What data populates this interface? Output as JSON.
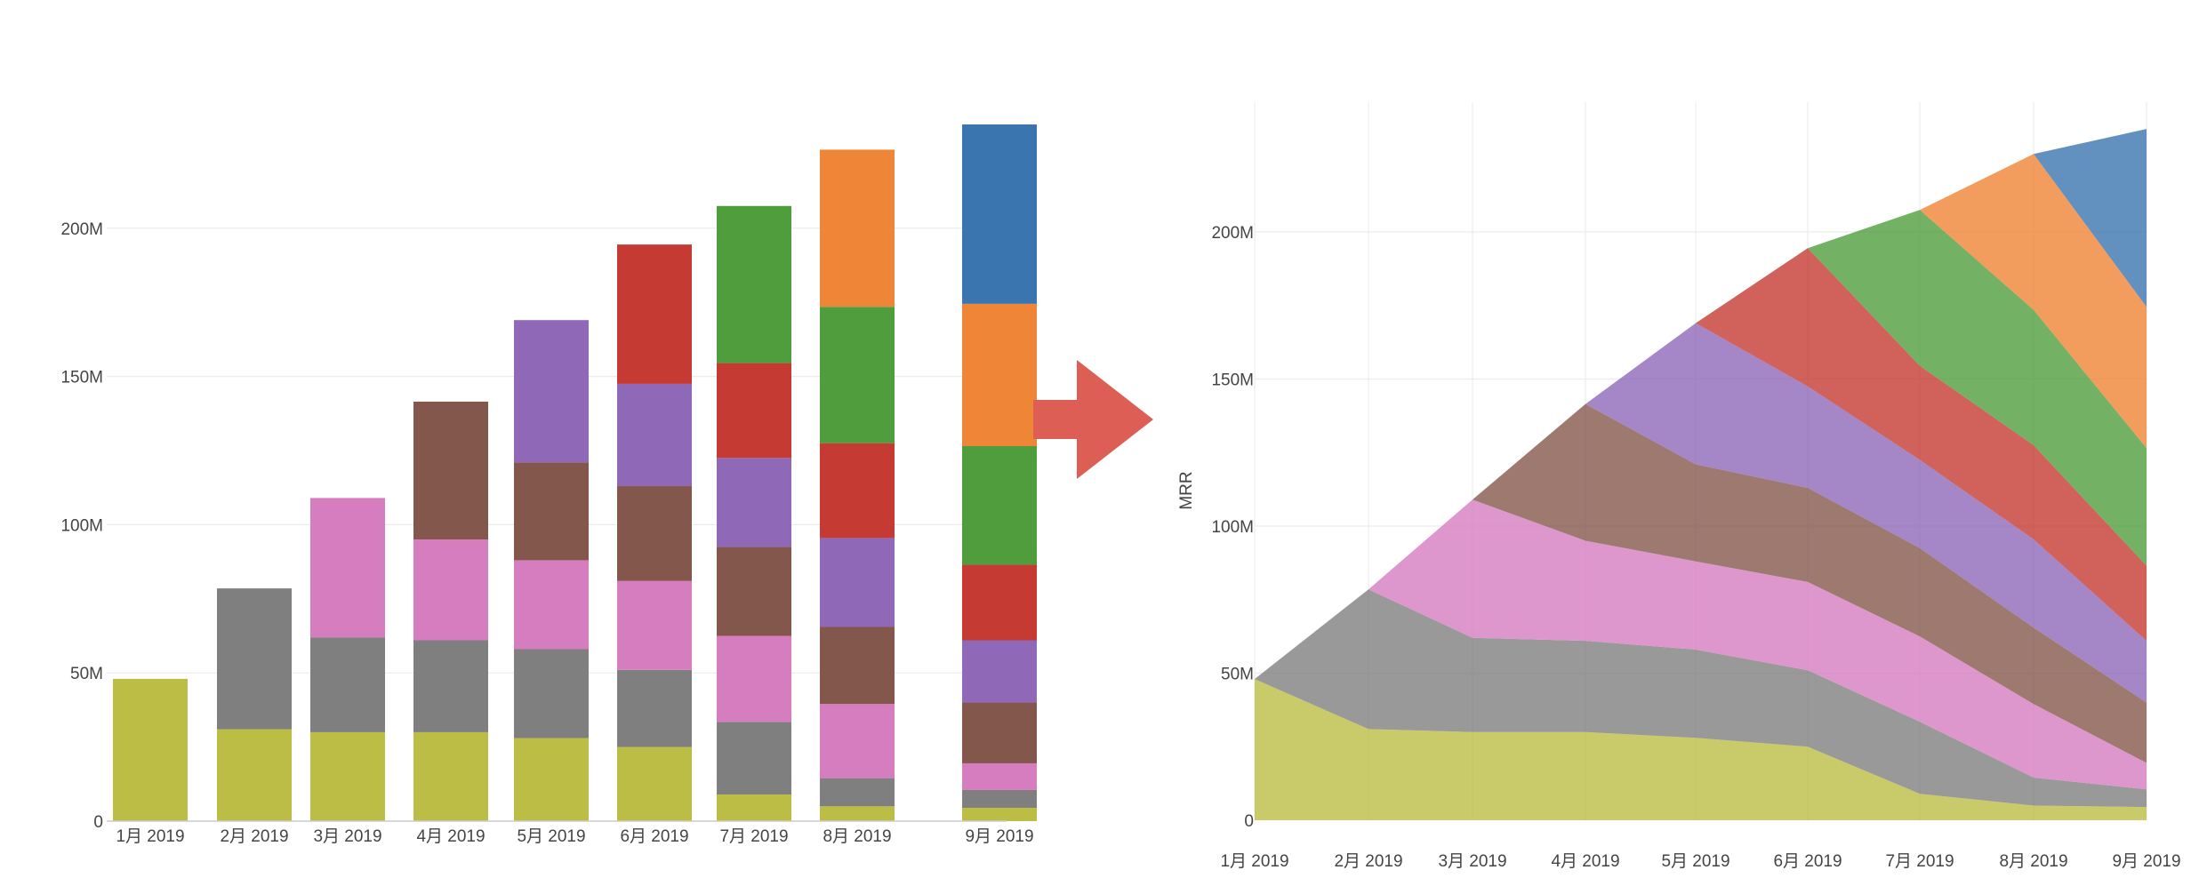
{
  "palette": {
    "c1": "#bcbd45",
    "c2": "#7f7f7f",
    "c3": "#d67dc0",
    "c4": "#84574c",
    "c5": "#8f68b8",
    "c6": "#c53a32",
    "c7": "#509d3d",
    "c8": "#ef8536",
    "c9": "#3b75af",
    "arrow": "#dc5e55",
    "grid": "#ececec",
    "axis": "#cccccc"
  },
  "transition_icon": "right-arrow-icon",
  "chart_data": [
    {
      "type": "bar",
      "stacked": true,
      "categories": [
        "1月 2019",
        "2月 2019",
        "3月 2019",
        "4月 2019",
        "5月 2019",
        "6月 2019",
        "7月 2019",
        "8月 2019",
        "9月 2019"
      ],
      "y_ticks": [
        "0",
        "50M",
        "100M",
        "150M",
        "200M"
      ],
      "y_tick_values": [
        0,
        50,
        100,
        150,
        200
      ],
      "ylim": [
        0,
        235
      ],
      "unit": "M",
      "grid": true,
      "ylabel": "",
      "series": [
        {
          "color": "#bcbd45",
          "values": [
            48,
            31,
            30,
            30,
            28,
            25,
            9,
            5,
            4.5
          ]
        },
        {
          "color": "#7f7f7f",
          "values": [
            0,
            47.5,
            32,
            31,
            30,
            26,
            24.5,
            9.5,
            6
          ]
        },
        {
          "color": "#d67dc0",
          "values": [
            0,
            0,
            47,
            34,
            30,
            30,
            29,
            25,
            9
          ]
        },
        {
          "color": "#84574c",
          "values": [
            0,
            0,
            0,
            46.5,
            33,
            32,
            30,
            26,
            20.5
          ]
        },
        {
          "color": "#8f68b8",
          "values": [
            0,
            0,
            0,
            0,
            48,
            34.5,
            30,
            30,
            21
          ]
        },
        {
          "color": "#c53a32",
          "values": [
            0,
            0,
            0,
            0,
            0,
            47,
            32,
            32,
            25.5
          ]
        },
        {
          "color": "#509d3d",
          "values": [
            0,
            0,
            0,
            0,
            0,
            0,
            53,
            46,
            40
          ]
        },
        {
          "color": "#ef8536",
          "values": [
            0,
            0,
            0,
            0,
            0,
            0,
            0,
            53,
            48
          ]
        },
        {
          "color": "#3b75af",
          "values": [
            0,
            0,
            0,
            0,
            0,
            0,
            0,
            0,
            60.5
          ]
        }
      ]
    },
    {
      "type": "area",
      "stacked": true,
      "categories": [
        "1月 2019",
        "2月 2019",
        "3月 2019",
        "4月 2019",
        "5月 2019",
        "6月 2019",
        "7月 2019",
        "8月 2019",
        "9月 2019"
      ],
      "y_ticks": [
        "0",
        "50M",
        "100M",
        "150M",
        "200M"
      ],
      "y_tick_values": [
        0,
        50,
        100,
        150,
        200
      ],
      "ylim": [
        0,
        235
      ],
      "unit": "M",
      "grid": true,
      "ylabel": "MRR",
      "series": [
        {
          "color": "#bcbd45",
          "values": [
            48,
            31,
            30,
            30,
            28,
            25,
            9,
            5,
            4.5
          ]
        },
        {
          "color": "#7f7f7f",
          "values": [
            0,
            47.5,
            32,
            31,
            30,
            26,
            24.5,
            9.5,
            6
          ]
        },
        {
          "color": "#d67dc0",
          "values": [
            0,
            0,
            47,
            34,
            30,
            30,
            29,
            25,
            9
          ]
        },
        {
          "color": "#84574c",
          "values": [
            0,
            0,
            0,
            46.5,
            33,
            32,
            30,
            26,
            20.5
          ]
        },
        {
          "color": "#8f68b8",
          "values": [
            0,
            0,
            0,
            0,
            48,
            34.5,
            30,
            30,
            21
          ]
        },
        {
          "color": "#c53a32",
          "values": [
            0,
            0,
            0,
            0,
            0,
            47,
            32,
            32,
            25.5
          ]
        },
        {
          "color": "#509d3d",
          "values": [
            0,
            0,
            0,
            0,
            0,
            0,
            53,
            46,
            40
          ]
        },
        {
          "color": "#ef8536",
          "values": [
            0,
            0,
            0,
            0,
            0,
            0,
            0,
            53,
            48
          ]
        },
        {
          "color": "#3b75af",
          "values": [
            0,
            0,
            0,
            0,
            0,
            0,
            0,
            0,
            60.5
          ]
        }
      ]
    }
  ]
}
